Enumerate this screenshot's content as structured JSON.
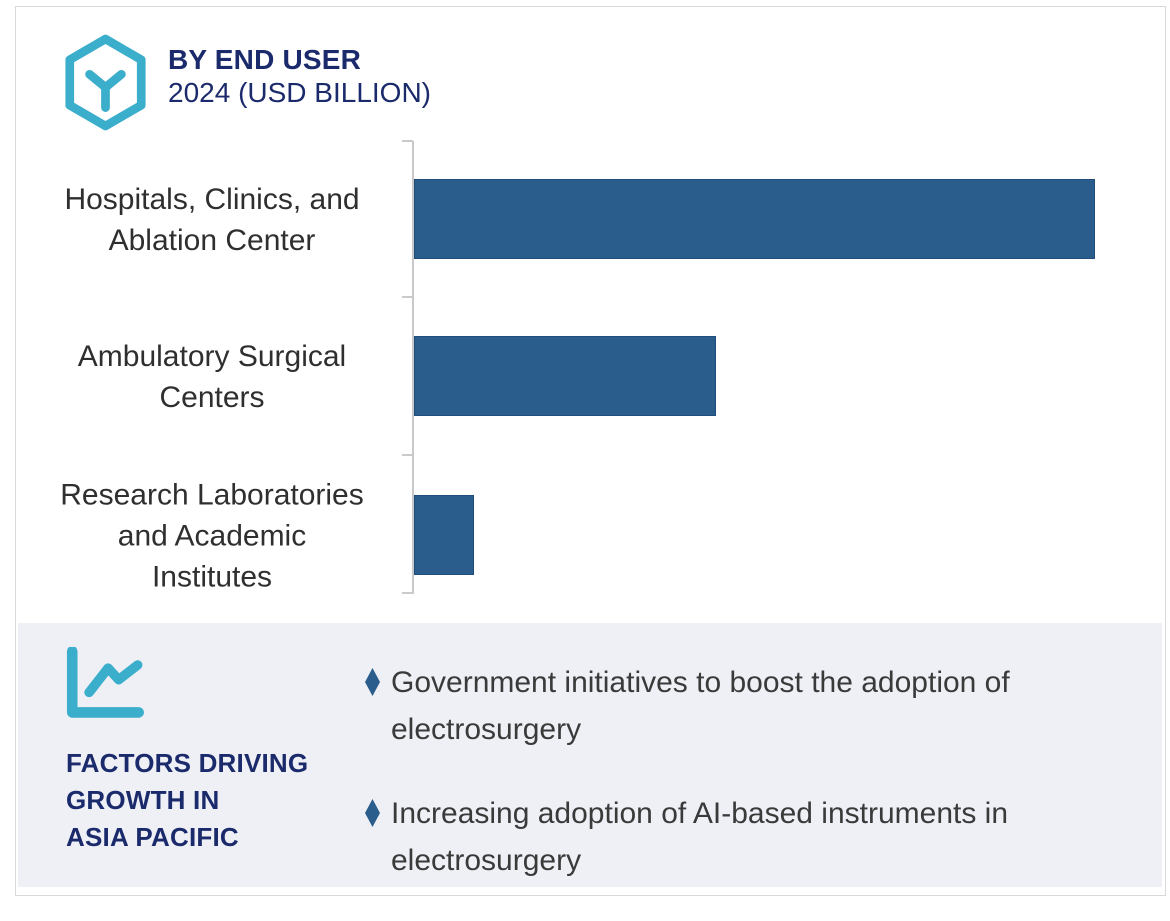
{
  "header": {
    "title": "BY END USER",
    "subtitle": "2024 (USD BILLION)",
    "logo_icon": "hexagon-y-logo"
  },
  "chart_data": {
    "type": "bar",
    "orientation": "horizontal",
    "title": "BY END USER",
    "subtitle": "2024 (USD BILLION)",
    "unit": "USD Billion",
    "year": "2024",
    "categories": [
      "Hospitals, Clinics, and Ablation Center",
      "Ambulatory Surgical Centers",
      "Research Laboratories and Academic Institutes"
    ],
    "category_lines": [
      [
        "Hospitals, Clinics, and",
        "Ablation Center"
      ],
      [
        "Ambulatory Surgical",
        "Centers"
      ],
      [
        "Research Laboratories",
        "and Academic",
        "Institutes"
      ]
    ],
    "values_relative_to_max": [
      1.0,
      0.443,
      0.088
    ],
    "value_labels_shown": false,
    "axis_scale_shown": false,
    "legend": "none",
    "grid": "off",
    "bar_color": "#2A5C8C",
    "axis_color": "#C9C9C9"
  },
  "factors_panel": {
    "icon": "line-chart-icon",
    "heading_lines": [
      "FACTORS DRIVING",
      "GROWTH IN",
      "ASIA PACIFIC"
    ],
    "bullet_icon": "diamond-bullet",
    "items": [
      {
        "lines": [
          "Government initiatives to boost the adoption of",
          "electrosurgery"
        ]
      },
      {
        "lines": [
          "Increasing adoption of AI-based instruments in",
          "electrosurgery"
        ]
      }
    ],
    "background_color": "#EEF0F5",
    "heading_color": "#1B2A6B",
    "text_color": "#3A3A3A"
  },
  "colors": {
    "accent_cyan": "#3BAECB",
    "navy": "#1B2A6B",
    "bar_blue": "#2A5C8C",
    "card_border": "#D9D9DD"
  }
}
